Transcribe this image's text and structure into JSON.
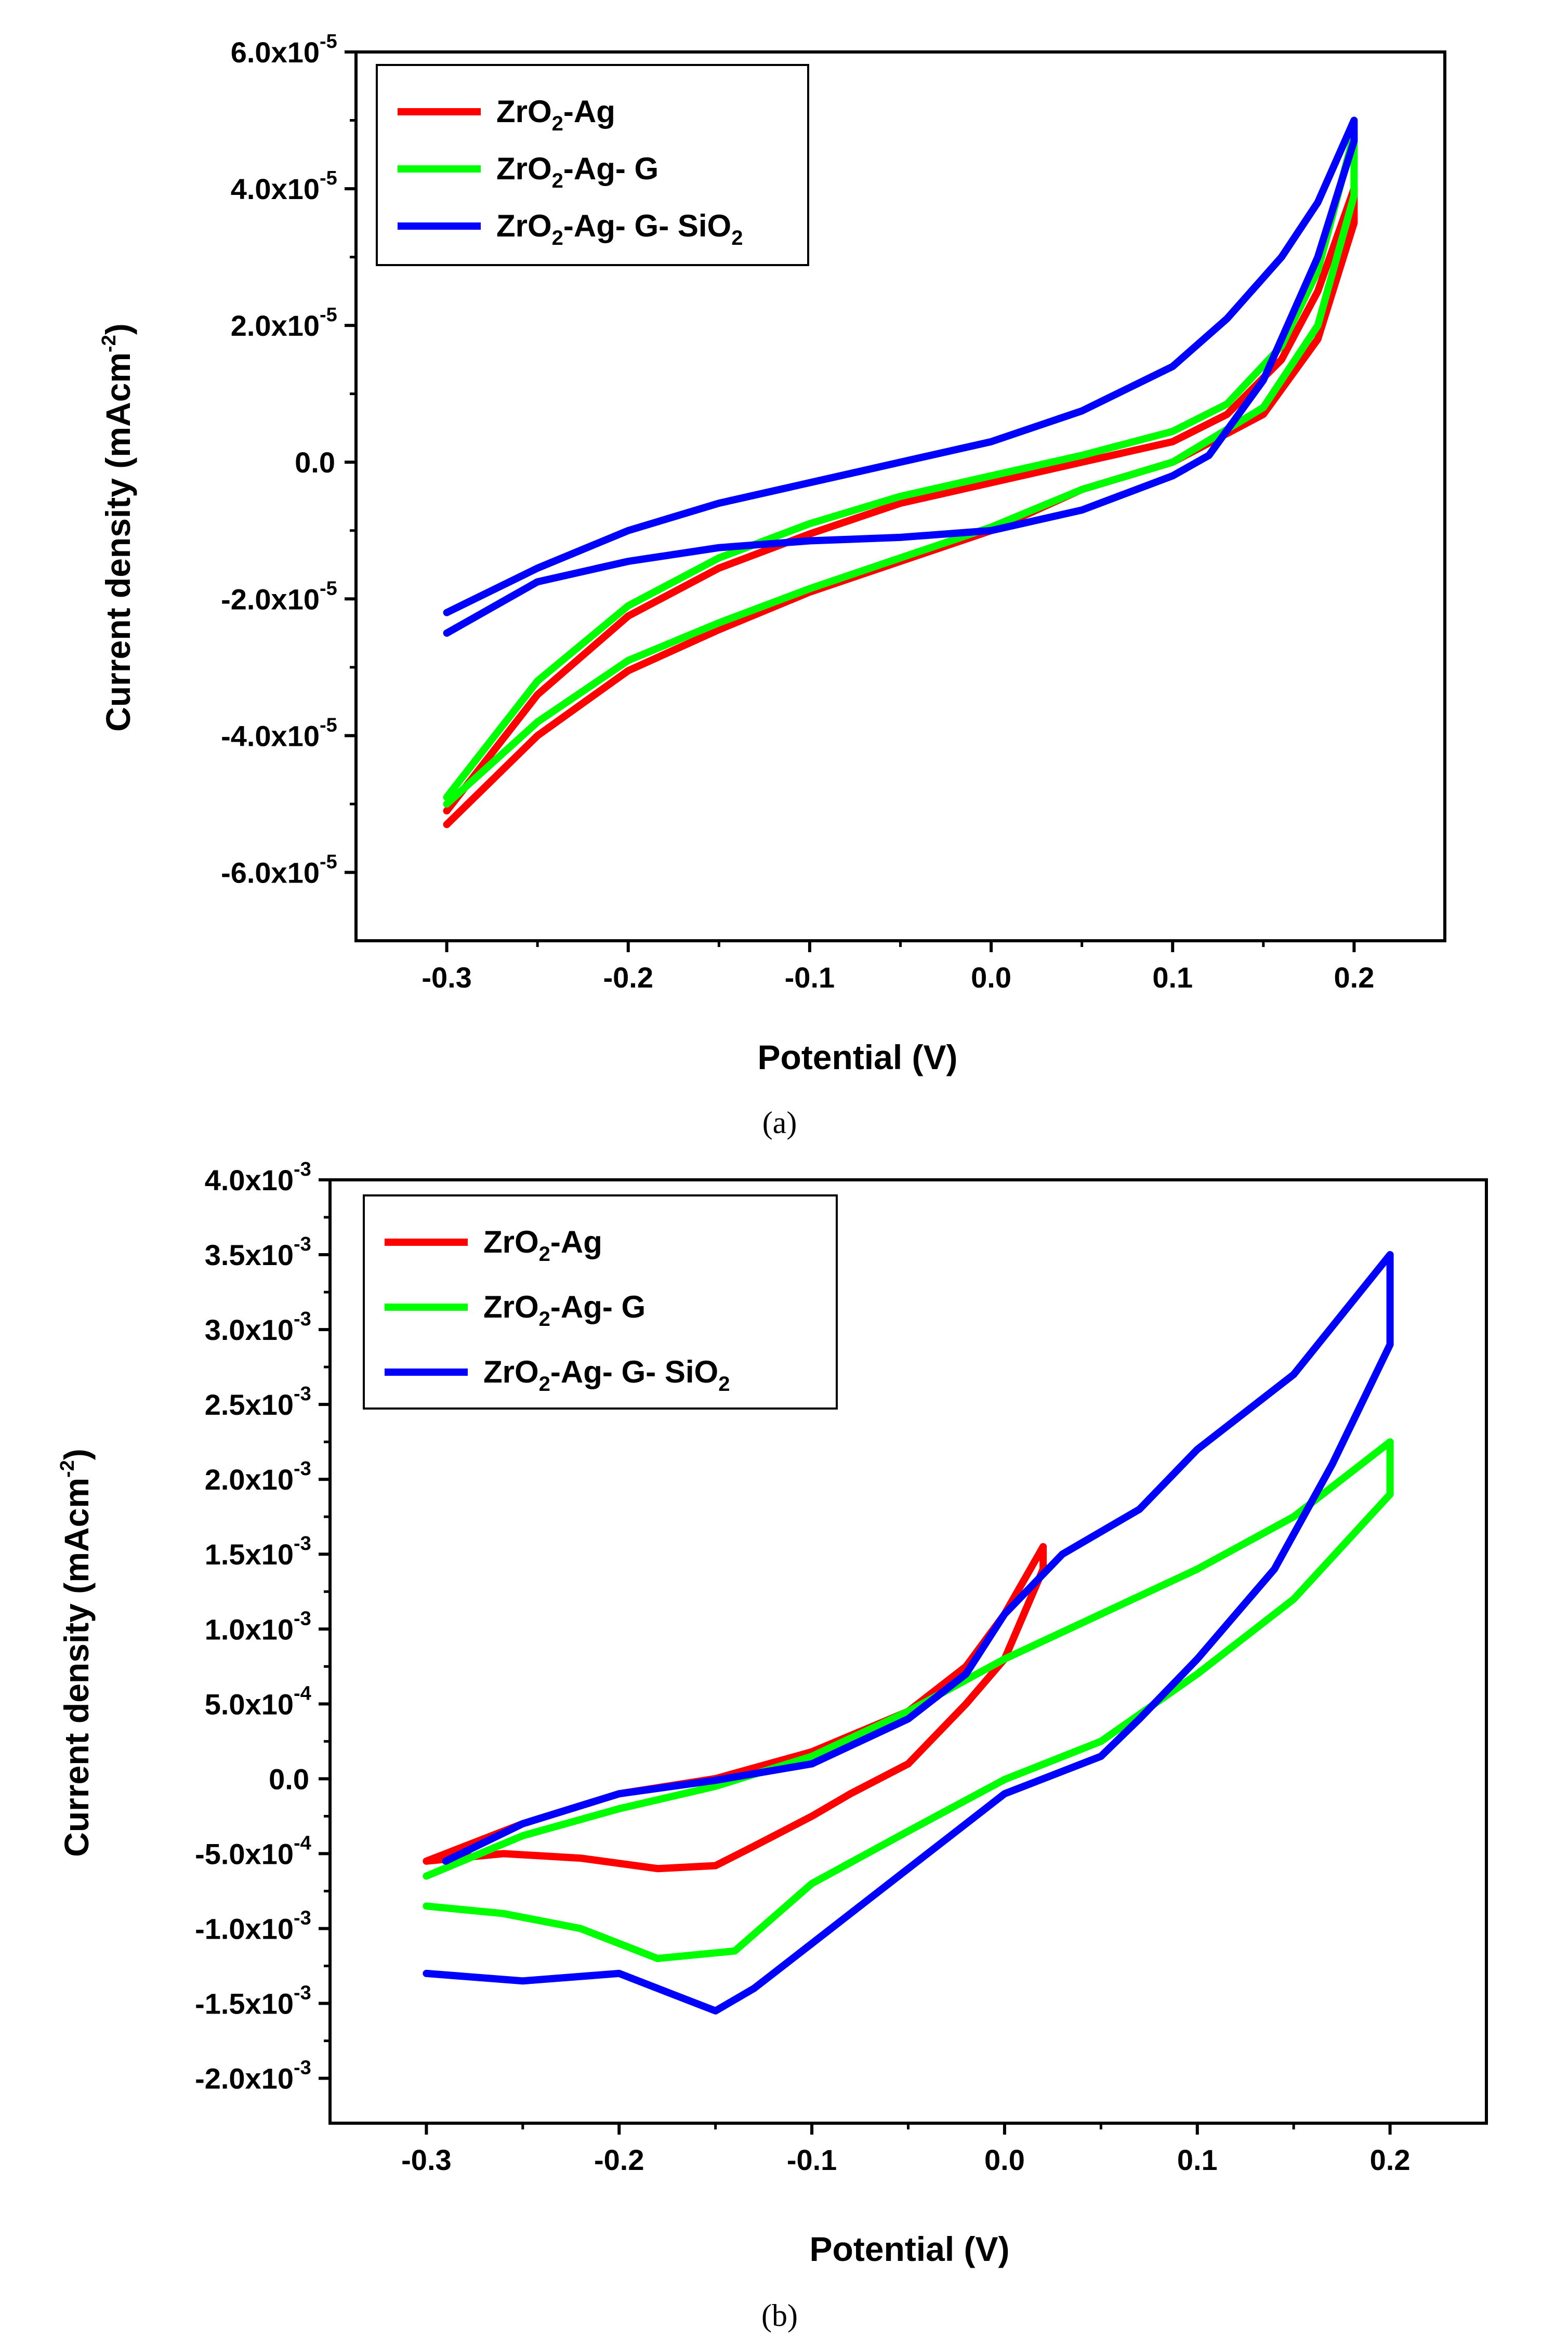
{
  "chart_data": [
    {
      "type": "line",
      "panel": "(a)",
      "xlabel": "Potential (V)",
      "ylabel": "Current density (mAcm-2)",
      "ylabel_main": "Current density (mAcm",
      "ylabel_exp": "-2",
      "ylabel_close": ")",
      "xlim": [
        -0.35,
        0.25
      ],
      "ylim": [
        -7e-05,
        6e-05
      ],
      "x_ticks": [
        -0.3,
        -0.2,
        -0.1,
        0.0,
        0.1,
        0.2
      ],
      "x_tick_labels": [
        "-0.3",
        "-0.2",
        "-0.1",
        "0.0",
        "0.1",
        "0.2"
      ],
      "y_ticks": [
        6e-05,
        4e-05,
        2e-05,
        0,
        -2e-05,
        -4e-05,
        -6e-05
      ],
      "y_tick_labels": [
        {
          "mant": "6.0x10",
          "exp": "-5"
        },
        {
          "mant": "4.0x10",
          "exp": "-5"
        },
        {
          "mant": "2.0x10",
          "exp": "-5"
        },
        {
          "mant": "0.0",
          "exp": ""
        },
        {
          "mant": "-2.0x10",
          "exp": "-5"
        },
        {
          "mant": "-4.0x10",
          "exp": "-5"
        },
        {
          "mant": "-6.0x10",
          "exp": "-5"
        }
      ],
      "legend_position": "top-left",
      "series": [
        {
          "name": "ZrO2-Ag",
          "label_main": "ZrO",
          "label_sub": "2",
          "label_rest": "-Ag",
          "color": "#ff0000",
          "x": [
            -0.3,
            -0.25,
            -0.2,
            -0.15,
            -0.1,
            -0.05,
            0.0,
            0.05,
            0.1,
            0.13,
            0.16,
            0.18,
            0.2,
            0.2,
            0.18,
            0.15,
            0.1,
            0.05,
            0.0,
            -0.05,
            -0.1,
            -0.15,
            -0.2,
            -0.25,
            -0.3
          ],
          "y": [
            -5.1e-05,
            -3.4e-05,
            -2.25e-05,
            -1.55e-05,
            -1.05e-05,
            -6e-06,
            -3e-06,
            0,
            3e-06,
            7e-06,
            1.5e-05,
            2.5e-05,
            4e-05,
            3.5e-05,
            1.8e-05,
            7e-06,
            0,
            -4e-06,
            -1e-05,
            -1.45e-05,
            -1.9e-05,
            -2.45e-05,
            -3.05e-05,
            -4e-05,
            -5.3e-05
          ]
        },
        {
          "name": "ZrO2-Ag- G",
          "label_main": "ZrO",
          "label_sub": "2",
          "label_rest": "-Ag- G",
          "color": "#00ff00",
          "x": [
            -0.3,
            -0.25,
            -0.2,
            -0.15,
            -0.1,
            -0.05,
            0.0,
            0.05,
            0.1,
            0.13,
            0.16,
            0.18,
            0.2,
            0.2,
            0.18,
            0.15,
            0.1,
            0.05,
            0.0,
            -0.05,
            -0.1,
            -0.15,
            -0.2,
            -0.25,
            -0.3
          ],
          "y": [
            -4.9e-05,
            -3.2e-05,
            -2.1e-05,
            -1.4e-05,
            -9e-06,
            -5e-06,
            -2e-06,
            1e-06,
            4.5e-06,
            8.5e-06,
            1.7e-05,
            2.8e-05,
            4.8e-05,
            3.9e-05,
            2e-05,
            8e-06,
            0,
            -4e-06,
            -9.5e-06,
            -1.4e-05,
            -1.85e-05,
            -2.35e-05,
            -2.9e-05,
            -3.8e-05,
            -5e-05
          ]
        },
        {
          "name": "ZrO2-Ag- G- SiO2",
          "label_main": "ZrO",
          "label_sub": "2",
          "label_rest": "-Ag- G- SiO",
          "label_sub2": "2",
          "color": "#0000ff",
          "x": [
            -0.3,
            -0.25,
            -0.2,
            -0.15,
            -0.1,
            -0.05,
            0.0,
            0.05,
            0.1,
            0.13,
            0.16,
            0.18,
            0.2,
            0.2,
            0.18,
            0.15,
            0.12,
            0.1,
            0.05,
            0.0,
            -0.05,
            -0.1,
            -0.15,
            -0.2,
            -0.25,
            -0.3
          ],
          "y": [
            -2.2e-05,
            -1.55e-05,
            -1e-05,
            -6e-06,
            -3e-06,
            0,
            3e-06,
            7.5e-06,
            1.4e-05,
            2.1e-05,
            3e-05,
            3.8e-05,
            5e-05,
            4.7e-05,
            3e-05,
            1.2e-05,
            1e-06,
            -2e-06,
            -7e-06,
            -1e-05,
            -1.1e-05,
            -1.15e-05,
            -1.25e-05,
            -1.45e-05,
            -1.75e-05,
            -2.5e-05
          ]
        }
      ]
    },
    {
      "type": "line",
      "panel": "(b)",
      "xlabel": "Potential (V)",
      "ylabel": "Current density (mAcm-2)",
      "ylabel_main": "Current density (mAcm",
      "ylabel_exp": "-2",
      "ylabel_close": ")",
      "xlim": [
        -0.35,
        0.25
      ],
      "ylim": [
        -0.0023,
        0.004
      ],
      "x_ticks": [
        -0.3,
        -0.2,
        -0.1,
        0.0,
        0.1,
        0.2
      ],
      "x_tick_labels": [
        "-0.3",
        "-0.2",
        "-0.1",
        "0.0",
        "0.1",
        "0.2"
      ],
      "y_ticks": [
        0.004,
        0.0035,
        0.003,
        0.0025,
        0.002,
        0.0015,
        0.001,
        0.0005,
        0,
        -0.0005,
        -0.001,
        -0.0015,
        -0.002
      ],
      "y_tick_labels": [
        {
          "mant": "4.0x10",
          "exp": "-3"
        },
        {
          "mant": "3.5x10",
          "exp": "-3"
        },
        {
          "mant": "3.0x10",
          "exp": "-3"
        },
        {
          "mant": "2.5x10",
          "exp": "-3"
        },
        {
          "mant": "2.0x10",
          "exp": "-3"
        },
        {
          "mant": "1.5x10",
          "exp": "-3"
        },
        {
          "mant": "1.0x10",
          "exp": "-3"
        },
        {
          "mant": "5.0x10",
          "exp": "-4"
        },
        {
          "mant": "0.0",
          "exp": ""
        },
        {
          "mant": "-5.0x10",
          "exp": "-4"
        },
        {
          "mant": "-1.0x10",
          "exp": "-3"
        },
        {
          "mant": "-1.5x10",
          "exp": "-3"
        },
        {
          "mant": "-2.0x10",
          "exp": "-3"
        }
      ],
      "legend_position": "top-left",
      "series": [
        {
          "name": "ZrO2-Ag",
          "label_main": "ZrO",
          "label_sub": "2",
          "label_rest": "-Ag",
          "color": "#ff0000",
          "x": [
            -0.3,
            -0.25,
            -0.2,
            -0.15,
            -0.1,
            -0.05,
            -0.02,
            0.0,
            0.02,
            0.02,
            0.0,
            -0.02,
            -0.05,
            -0.08,
            -0.1,
            -0.13,
            -0.15,
            -0.18,
            -0.22,
            -0.26,
            -0.3
          ],
          "y": [
            -0.00055,
            -0.0003,
            -0.0001,
            1e-06,
            0.00018,
            0.00045,
            0.00075,
            0.0011,
            0.00155,
            0.0014,
            0.0008,
            0.0005,
            0.0001,
            -0.0001,
            -0.00025,
            -0.00045,
            -0.00058,
            -0.0006,
            -0.00053,
            -0.0005,
            -0.00055
          ]
        },
        {
          "name": "ZrO2-Ag- G",
          "label_main": "ZrO",
          "label_sub": "2",
          "label_rest": "-Ag- G",
          "color": "#00ff00",
          "x": [
            -0.3,
            -0.25,
            -0.2,
            -0.15,
            -0.1,
            -0.05,
            0.0,
            0.05,
            0.1,
            0.15,
            0.2,
            0.2,
            0.15,
            0.1,
            0.05,
            0.0,
            -0.05,
            -0.1,
            -0.14,
            -0.18,
            -0.22,
            -0.26,
            -0.3
          ],
          "y": [
            -0.00065,
            -0.00038,
            -0.0002,
            -5e-05,
            0.00015,
            0.00045,
            0.0008,
            0.0011,
            0.0014,
            0.00175,
            0.00225,
            0.0019,
            0.0012,
            0.0007,
            0.00025,
            -5e-06,
            -0.00035,
            -0.0007,
            -0.00115,
            -0.0012,
            -0.001,
            -0.0009,
            -0.00085
          ]
        },
        {
          "name": "ZrO2-Ag- G- SiO2",
          "label_main": "ZrO",
          "label_sub": "2",
          "label_rest": "-Ag- G- SiO",
          "label_sub2": "2",
          "color": "#0000ff",
          "x": [
            -0.29,
            -0.25,
            -0.2,
            -0.15,
            -0.1,
            -0.05,
            -0.02,
            0.0,
            0.03,
            0.07,
            0.1,
            0.15,
            0.2,
            0.2,
            0.17,
            0.14,
            0.1,
            0.07,
            0.05,
            0.03,
            0.0,
            -0.03,
            -0.06,
            -0.1,
            -0.13,
            -0.15,
            -0.17,
            -0.2,
            -0.25,
            -0.3
          ],
          "y": [
            -0.00055,
            -0.0003,
            -0.0001,
            -1e-05,
            0.0001,
            0.0004,
            0.0007,
            0.0011,
            0.0015,
            0.0018,
            0.0022,
            0.0027,
            0.0035,
            0.0029,
            0.0021,
            0.0014,
            0.0008,
            0.0004,
            0.00015,
            5e-05,
            -0.0001,
            -0.0004,
            -0.0007,
            -0.0011,
            -0.0014,
            -0.00155,
            -0.00145,
            -0.0013,
            -0.00135,
            -0.0013
          ]
        }
      ]
    }
  ]
}
